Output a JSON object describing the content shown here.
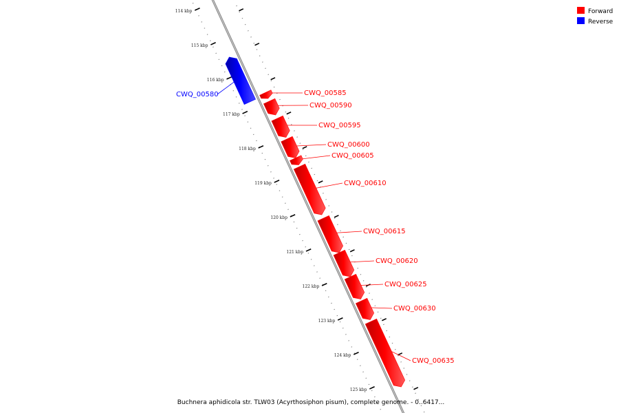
{
  "caption": "Buchnera aphidicola str. TLW03 (Acyrthosiphon pisum), complete genome. - 0..6417...",
  "legend": [
    {
      "label": "Forward",
      "color": "#ff0000"
    },
    {
      "label": "Reverse",
      "color": "#0000ff"
    }
  ],
  "axis": {
    "unit": "kbp",
    "ticks": [
      "114 kbp",
      "115 kbp",
      "116 kbp",
      "117 kbp",
      "118 kbp",
      "119 kbp",
      "120 kbp",
      "121 kbp",
      "122 kbp",
      "123 kbp",
      "124 kbp",
      "125 kbp"
    ]
  },
  "chart_data": {
    "type": "linear-genome-map",
    "genes": [
      {
        "name": "CWQ_00580",
        "strand": "reverse",
        "start_kbp": 115.5,
        "end_kbp": 116.8
      },
      {
        "name": "CWQ_00585",
        "strand": "forward",
        "start_kbp": 116.75,
        "end_kbp": 116.92
      },
      {
        "name": "CWQ_00590",
        "strand": "forward",
        "start_kbp": 117.0,
        "end_kbp": 117.4
      },
      {
        "name": "CWQ_00595",
        "strand": "forward",
        "start_kbp": 117.5,
        "end_kbp": 118.05
      },
      {
        "name": "CWQ_00600",
        "strand": "forward",
        "start_kbp": 118.1,
        "end_kbp": 118.65
      },
      {
        "name": "CWQ_00605",
        "strand": "forward",
        "start_kbp": 118.65,
        "end_kbp": 118.85
      },
      {
        "name": "CWQ_00610",
        "strand": "forward",
        "start_kbp": 118.9,
        "end_kbp": 120.3
      },
      {
        "name": "CWQ_00615",
        "strand": "forward",
        "start_kbp": 120.4,
        "end_kbp": 121.4
      },
      {
        "name": "CWQ_00620",
        "strand": "forward",
        "start_kbp": 121.4,
        "end_kbp": 122.1
      },
      {
        "name": "CWQ_00625",
        "strand": "forward",
        "start_kbp": 122.1,
        "end_kbp": 122.75
      },
      {
        "name": "CWQ_00630",
        "strand": "forward",
        "start_kbp": 122.8,
        "end_kbp": 123.35
      },
      {
        "name": "CWQ_00635",
        "strand": "forward",
        "start_kbp": 123.4,
        "end_kbp": 125.3
      }
    ]
  }
}
